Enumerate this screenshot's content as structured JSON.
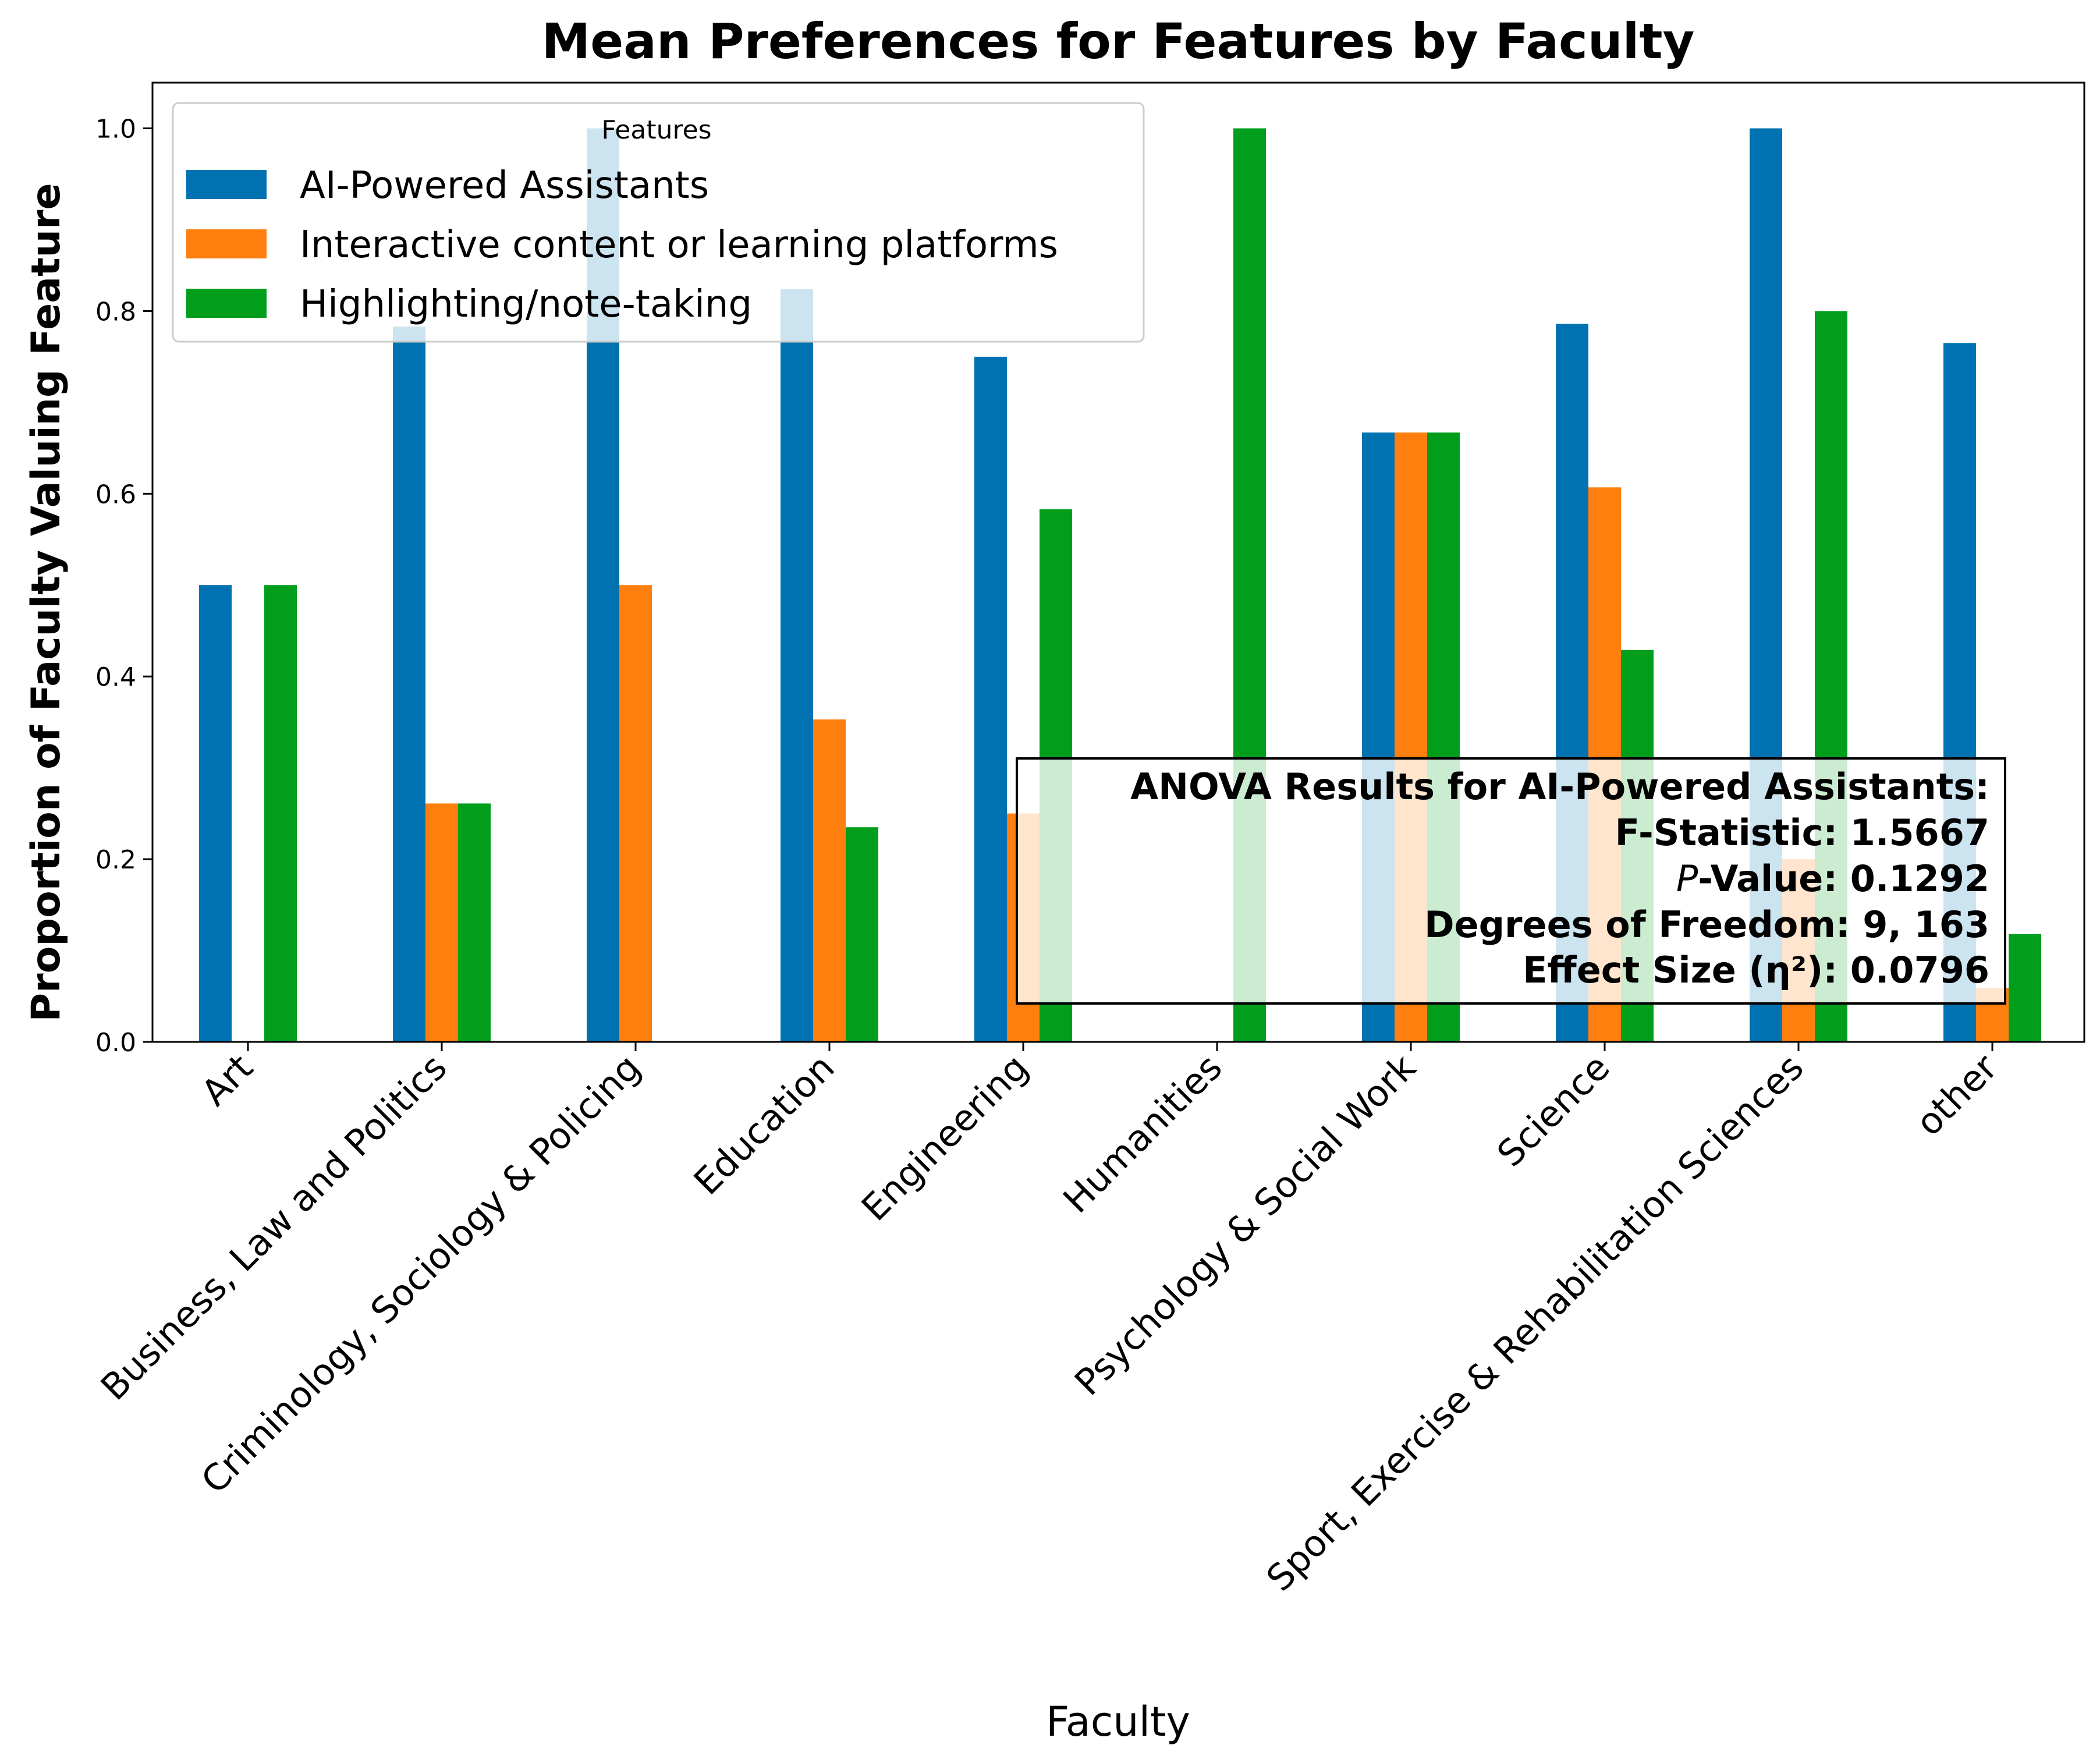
{
  "chart_data": {
    "type": "bar",
    "title": "Mean Preferences for Features by Faculty",
    "xlabel": "Faculty",
    "ylabel": "Proportion of Faculty Valuing Feature",
    "ylim": [
      0,
      1.05
    ],
    "yticks": [
      0.0,
      0.2,
      0.4,
      0.6,
      0.8,
      1.0
    ],
    "ytick_labels": [
      "0.0",
      "0.2",
      "0.4",
      "0.6",
      "0.8",
      "1.0"
    ],
    "grid": false,
    "legend_position": "top-left",
    "legend_title": "Features",
    "categories": [
      "Art",
      "Business, Law and Politics",
      "Criminology, Sociology & Policing",
      "Education",
      "Engineering",
      "Humanities",
      "Psychology & Social Work",
      "Science",
      "Sport, Exercise & Rehabilitation Sciences",
      "other"
    ],
    "series": [
      {
        "name": "AI-Powered Assistants",
        "color": "#0072b2",
        "values": [
          0.5,
          0.783,
          1.0,
          0.824,
          0.75,
          0.0,
          0.667,
          0.786,
          1.0,
          0.765
        ]
      },
      {
        "name": "Interactive content or learning platforms",
        "color": "#ff7f0e",
        "values": [
          0.0,
          0.261,
          0.5,
          0.353,
          0.25,
          0.0,
          0.667,
          0.607,
          0.2,
          0.059
        ]
      },
      {
        "name": "Highlighting/note-taking",
        "color": "#009e1a",
        "values": [
          0.5,
          0.261,
          0.0,
          0.235,
          0.583,
          1.0,
          0.667,
          0.429,
          0.8,
          0.118
        ]
      }
    ],
    "annotation": {
      "title": "ANOVA Results for AI-Powered Assistants:",
      "lines": [
        {
          "label": "F-Statistic: ",
          "value": "1.5667"
        },
        {
          "label_italic": "P",
          "label": "-Value: ",
          "value": "0.1292"
        },
        {
          "label": "Degrees of Freedom: ",
          "value": "9, 163"
        },
        {
          "label": "Effect Size (η²): ",
          "value": "0.0796"
        }
      ]
    }
  }
}
